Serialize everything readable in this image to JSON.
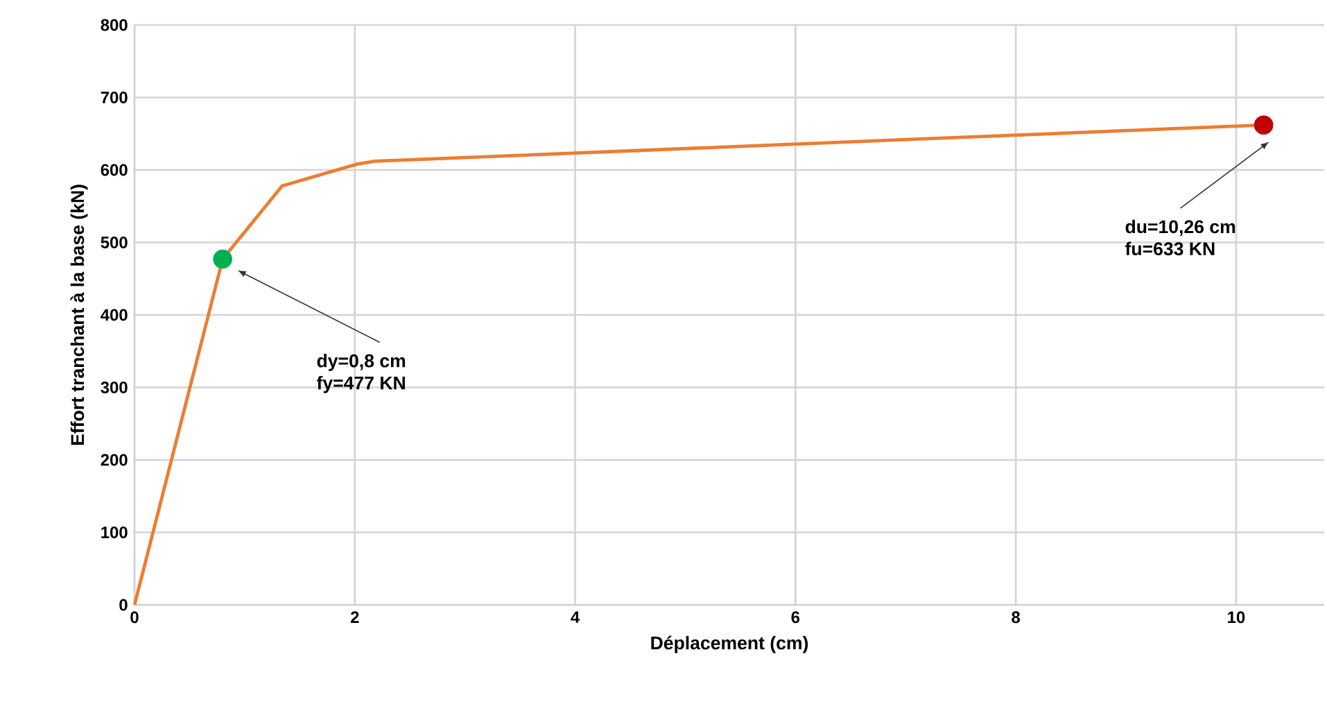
{
  "chart_data": {
    "type": "line",
    "xlabel": "Déplacement (cm)",
    "ylabel": "Effort tranchant à la base (kN)",
    "xlim": [
      0,
      10.8
    ],
    "ylim": [
      0,
      800
    ],
    "xticks": [
      0,
      2,
      4,
      6,
      8,
      10
    ],
    "yticks": [
      0,
      100,
      200,
      300,
      400,
      500,
      600,
      700,
      800
    ],
    "grid": true,
    "series": [
      {
        "color": "#ed7d31",
        "x": [
          0,
          0.8,
          1.34,
          2.02,
          2.18,
          10.25
        ],
        "values": [
          0,
          477,
          578,
          608,
          612,
          662
        ]
      },
      {
        "type": "scatter",
        "color": "#00b050",
        "x": [
          0.8
        ],
        "values": [
          477
        ]
      },
      {
        "type": "scatter",
        "color": "#c00000",
        "x": [
          10.25
        ],
        "values": [
          662
        ]
      }
    ],
    "annotations": [
      "dy=0,8 cm",
      "fy=477 KN",
      "du=10,26 cm",
      "fu=633 KN"
    ]
  }
}
